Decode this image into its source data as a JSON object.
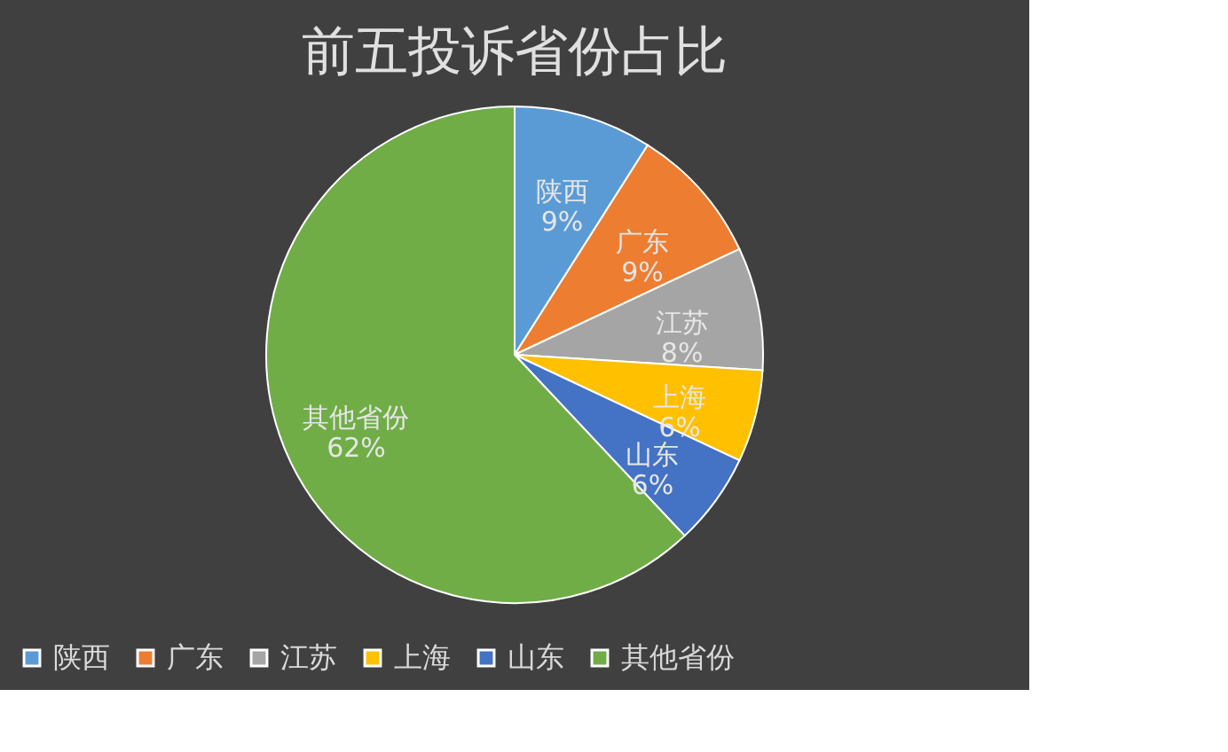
{
  "chart_data": {
    "type": "pie",
    "title": "前五投诉省份占比",
    "categories": [
      "陕西",
      "广东",
      "江苏",
      "上海",
      "山东",
      "其他省份"
    ],
    "values": [
      9,
      9,
      8,
      6,
      6,
      62
    ],
    "value_labels": [
      "9%",
      "9%",
      "8%",
      "6%",
      "6%",
      "62%"
    ],
    "colors": [
      "#5b9bd5",
      "#ed7d31",
      "#a5a5a5",
      "#ffc000",
      "#4472c4",
      "#70ad47"
    ],
    "legend": "bottom"
  }
}
